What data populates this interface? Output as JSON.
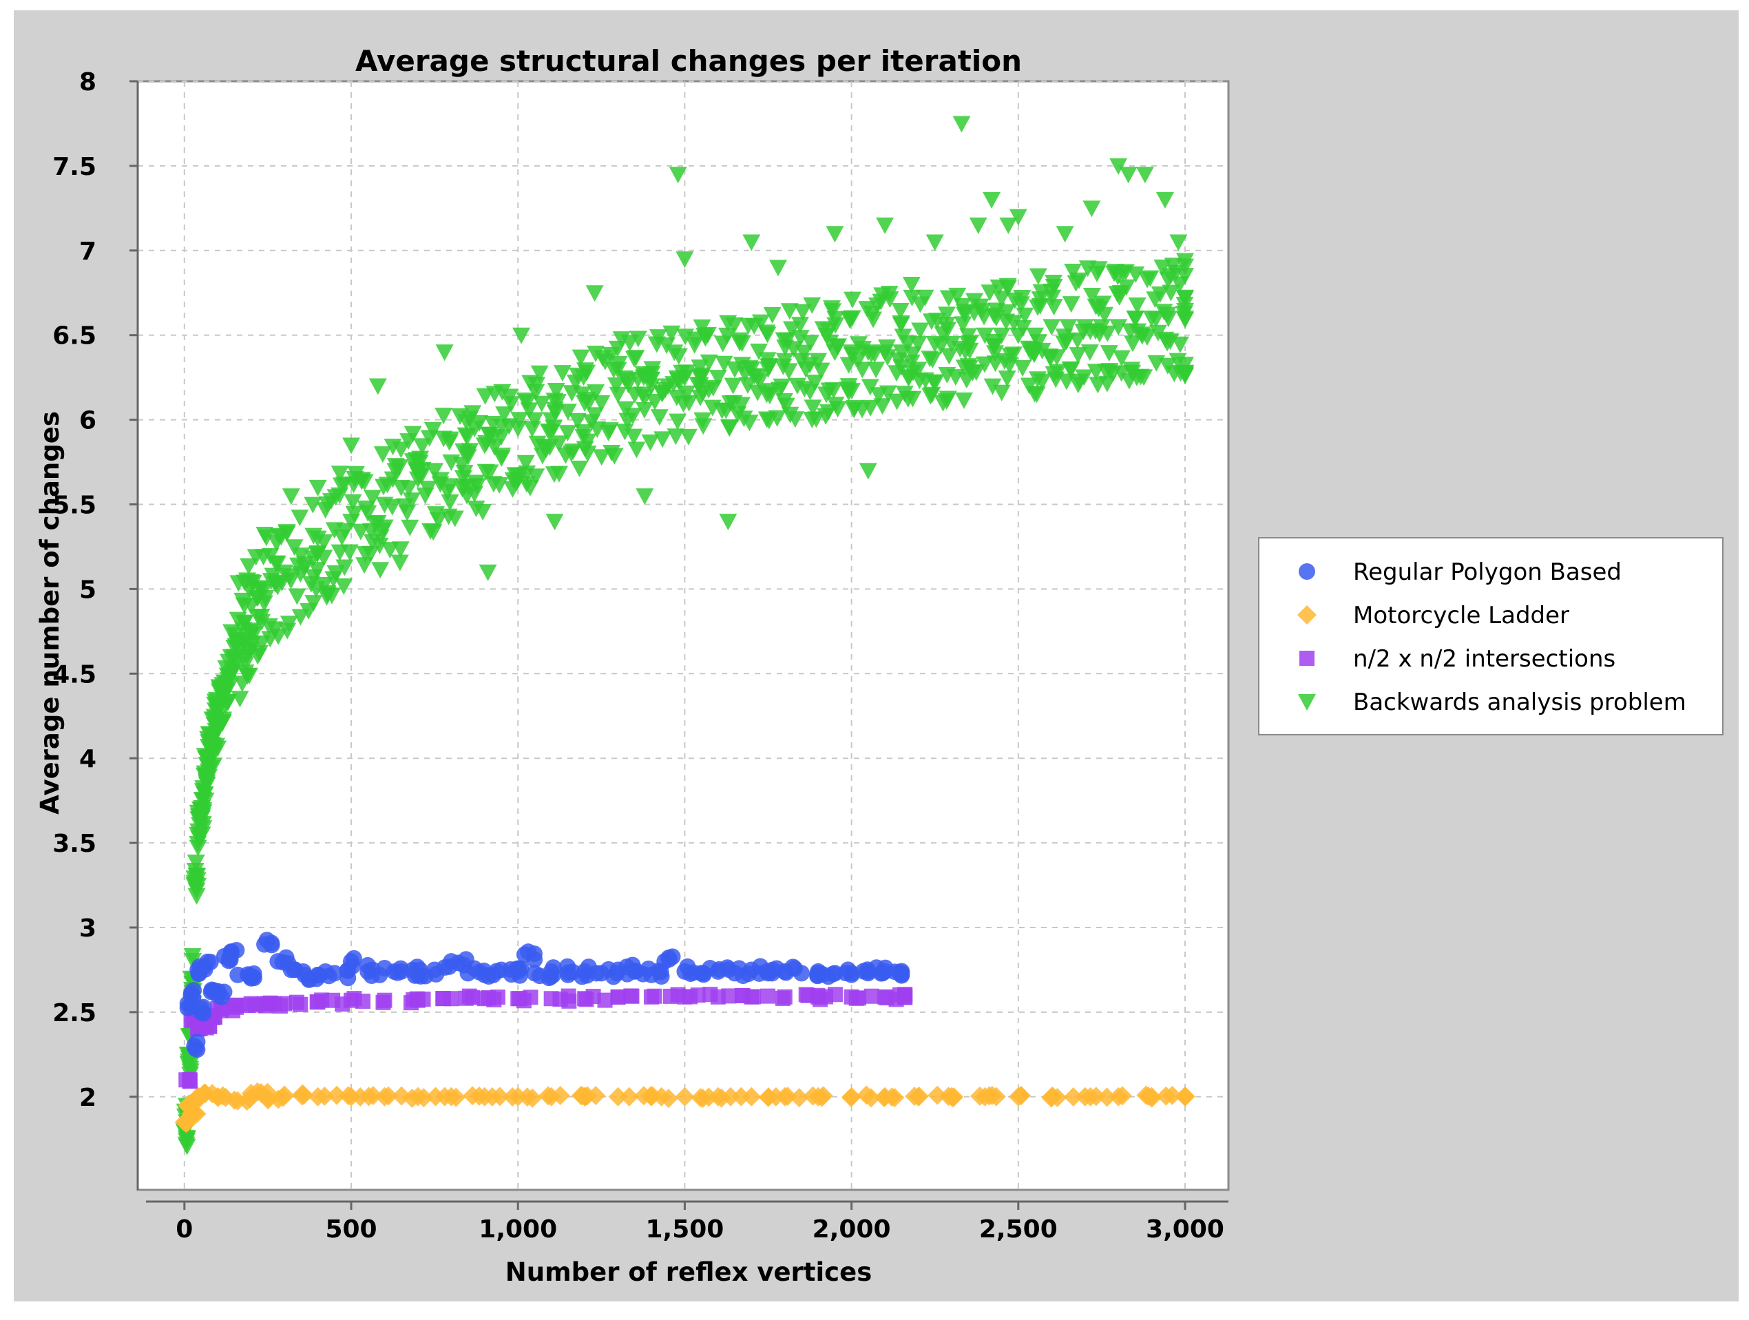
{
  "chart_data": {
    "type": "scatter",
    "title": "Average structural changes per iteration",
    "xlabel": "Number of reflex vertices",
    "ylabel": "Average number of changes",
    "xlim": [
      -140,
      3130
    ],
    "ylim": [
      1.45,
      8
    ],
    "x_ticks": [
      {
        "value": 0,
        "label": "0"
      },
      {
        "value": 500,
        "label": "500"
      },
      {
        "value": 1000,
        "label": "1,000"
      },
      {
        "value": 1500,
        "label": "1,500"
      },
      {
        "value": 2000,
        "label": "2,000"
      },
      {
        "value": 2500,
        "label": "2,500"
      },
      {
        "value": 3000,
        "label": "3,000"
      }
    ],
    "y_ticks": [
      {
        "value": 2,
        "label": "2"
      },
      {
        "value": 2.5,
        "label": "2.5"
      },
      {
        "value": 3,
        "label": "3"
      },
      {
        "value": 3.5,
        "label": "3.5"
      },
      {
        "value": 4,
        "label": "4"
      },
      {
        "value": 4.5,
        "label": "4.5"
      },
      {
        "value": 5,
        "label": "5"
      },
      {
        "value": 5.5,
        "label": "5.5"
      },
      {
        "value": 6,
        "label": "6"
      },
      {
        "value": 6.5,
        "label": "6.5"
      },
      {
        "value": 7,
        "label": "7"
      },
      {
        "value": 7.5,
        "label": "7.5"
      },
      {
        "value": 8,
        "label": "8"
      }
    ],
    "grid": true,
    "legend_position": "right",
    "series": [
      {
        "name": "Regular Polygon Based",
        "marker": "circle",
        "color": "#3a5cf0",
        "x": [
          10,
          20,
          30,
          40,
          50,
          60,
          80,
          100,
          120,
          140,
          160,
          200,
          240,
          280,
          320,
          360,
          400,
          450,
          500,
          550,
          600,
          650,
          700,
          750,
          800,
          850,
          900,
          950,
          1000,
          1020,
          1050,
          1100,
          1150,
          1200,
          1250,
          1300,
          1350,
          1400,
          1440,
          1500,
          1550,
          1600,
          1650,
          1700,
          1750,
          1800,
          1850,
          1900,
          1950,
          2000,
          2050,
          2100,
          2150
        ],
        "y": [
          2.55,
          2.6,
          2.3,
          2.75,
          2.5,
          2.77,
          2.62,
          2.6,
          2.83,
          2.84,
          2.72,
          2.7,
          2.9,
          2.8,
          2.75,
          2.72,
          2.72,
          2.73,
          2.8,
          2.74,
          2.76,
          2.74,
          2.72,
          2.75,
          2.8,
          2.73,
          2.72,
          2.75,
          2.74,
          2.84,
          2.73,
          2.74,
          2.72,
          2.74,
          2.73,
          2.75,
          2.74,
          2.72,
          2.8,
          2.74,
          2.73,
          2.74,
          2.73,
          2.75,
          2.73,
          2.74,
          2.73,
          2.74,
          2.73,
          2.73,
          2.74,
          2.74,
          2.73
        ]
      },
      {
        "name": "Motorcycle Ladder",
        "marker": "diamond",
        "color": "#ffb732",
        "x": [
          0,
          10,
          20,
          40,
          60,
          100,
          150,
          200,
          250,
          300,
          400,
          500,
          600,
          700,
          800,
          900,
          1000,
          1100,
          1200,
          1300,
          1400,
          1500,
          1600,
          1700,
          1800,
          1900,
          2000,
          2100,
          2200,
          2300,
          2400,
          2500,
          2600,
          2700,
          2800,
          2900,
          3000
        ],
        "y": [
          1.85,
          1.95,
          1.9,
          2.0,
          2.02,
          2.0,
          1.98,
          2.02,
          1.99,
          2.01,
          2.0,
          2.0,
          2.0,
          2.0,
          2.0,
          2.0,
          2.0,
          2.0,
          2.0,
          2.0,
          2.0,
          2.0,
          2.0,
          2.0,
          2.0,
          2.0,
          2.0,
          2.0,
          2.0,
          2.0,
          2.0,
          2.0,
          2.0,
          2.0,
          2.0,
          2.0,
          2.0
        ]
      },
      {
        "name": "n/2 x n/2 intersections",
        "marker": "square",
        "color": "#a040f0",
        "x": [
          5,
          20,
          40,
          60,
          80,
          100,
          150,
          200,
          250,
          300,
          400,
          500,
          600,
          700,
          800,
          900,
          1000,
          1100,
          1200,
          1300,
          1400,
          1500,
          1600,
          1700,
          1800,
          1900,
          2000,
          2100,
          2160
        ],
        "y": [
          2.1,
          2.45,
          2.4,
          2.42,
          2.48,
          2.52,
          2.54,
          2.55,
          2.55,
          2.55,
          2.56,
          2.57,
          2.57,
          2.57,
          2.58,
          2.58,
          2.58,
          2.58,
          2.58,
          2.59,
          2.59,
          2.59,
          2.59,
          2.59,
          2.59,
          2.59,
          2.59,
          2.59,
          2.59
        ]
      },
      {
        "name": "Backwards analysis problem",
        "marker": "triangle-down",
        "color": "#33cc33",
        "x": [
          0,
          10,
          20,
          30,
          40,
          50,
          60,
          70,
          80,
          90,
          100,
          120,
          140,
          160,
          180,
          200,
          230,
          260,
          300,
          350,
          400,
          450,
          500,
          550,
          600,
          650,
          700,
          750,
          800,
          850,
          900,
          950,
          1000,
          1050,
          1100,
          1150,
          1200,
          1250,
          1300,
          1350,
          1400,
          1450,
          1500,
          1550,
          1600,
          1650,
          1700,
          1750,
          1800,
          1850,
          1900,
          1950,
          2000,
          2050,
          2100,
          2150,
          2200,
          2250,
          2300,
          2350,
          2400,
          2450,
          2500,
          2550,
          2600,
          2650,
          2700,
          2750,
          2800,
          2850,
          2900,
          2950,
          3000
        ],
        "y": [
          1.8,
          2.25,
          2.7,
          3.25,
          3.55,
          3.7,
          3.9,
          4.0,
          4.1,
          4.2,
          4.3,
          4.45,
          4.6,
          4.7,
          4.8,
          4.9,
          5.0,
          5.05,
          5.1,
          5.2,
          5.3,
          5.35,
          5.4,
          5.45,
          5.5,
          5.6,
          5.65,
          5.7,
          5.75,
          5.8,
          5.85,
          5.9,
          5.95,
          6.0,
          6.0,
          6.05,
          6.1,
          6.1,
          6.15,
          6.15,
          6.2,
          6.2,
          6.25,
          6.25,
          6.25,
          6.3,
          6.3,
          6.3,
          6.35,
          6.35,
          6.35,
          6.4,
          6.4,
          6.4,
          6.4,
          6.4,
          6.45,
          6.45,
          6.45,
          6.45,
          6.5,
          6.5,
          6.5,
          6.5,
          6.55,
          6.55,
          6.55,
          6.55,
          6.55,
          6.6,
          6.6,
          6.6,
          6.6
        ]
      }
    ],
    "outliers": {
      "name": "Backwards analysis problem",
      "x": [
        220,
        320,
        400,
        500,
        580,
        780,
        910,
        1010,
        1110,
        1230,
        1380,
        1480,
        1500,
        1630,
        1700,
        1780,
        1950,
        2050,
        2100,
        2180,
        2250,
        2330,
        2380,
        2420,
        2470,
        2500,
        2560,
        2640,
        2720,
        2800,
        2830,
        2880,
        2940,
        2980
      ],
      "y": [
        4.95,
        5.55,
        5.6,
        5.85,
        6.2,
        6.4,
        5.1,
        6.5,
        5.4,
        6.75,
        5.55,
        7.45,
        6.95,
        5.4,
        7.05,
        6.9,
        7.1,
        5.7,
        7.15,
        6.8,
        7.05,
        7.75,
        7.15,
        7.3,
        7.15,
        7.2,
        6.85,
        7.1,
        7.25,
        7.5,
        7.45,
        7.45,
        7.3,
        7.05
      ]
    }
  }
}
